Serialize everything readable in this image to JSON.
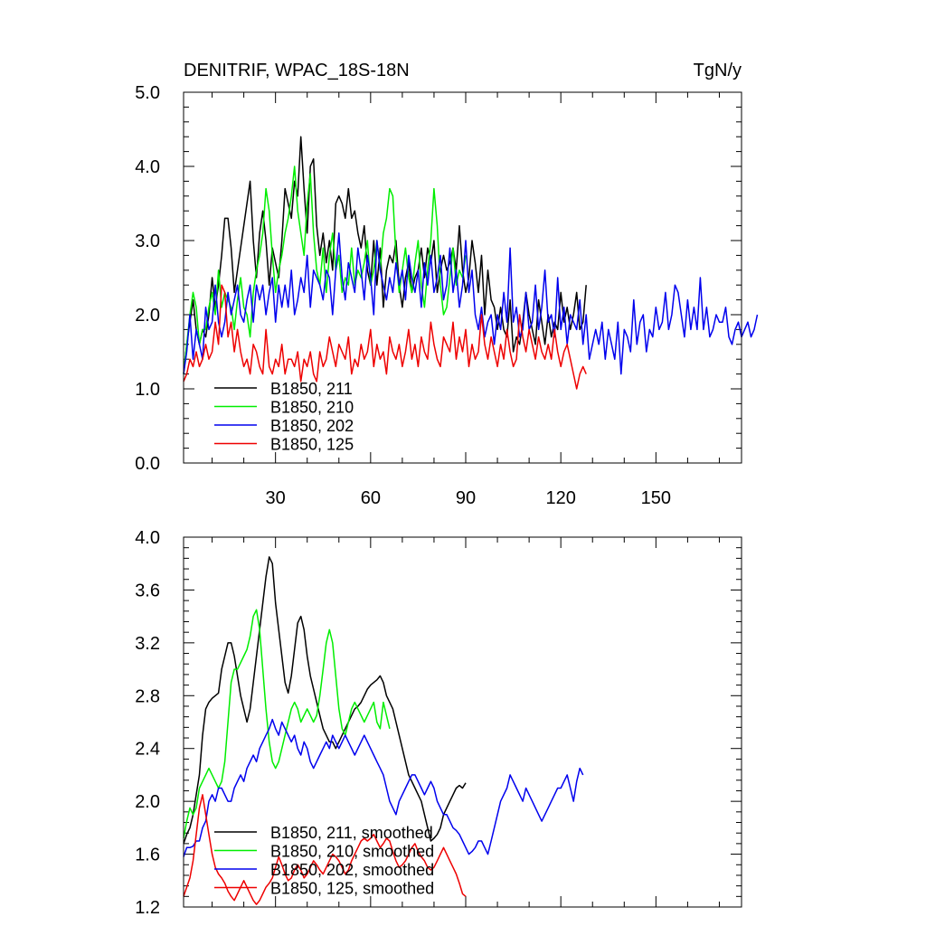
{
  "chart_data": [
    {
      "type": "line",
      "title_left": "DENITRIF, WPAC_18S-18N",
      "title_right": "TgN/y",
      "xlabel": "",
      "ylabel": "",
      "xlim": [
        1,
        177
      ],
      "ylim": [
        0.0,
        5.0
      ],
      "x_ticks": [
        30,
        60,
        90,
        120,
        150
      ],
      "y_ticks": [
        "0.0",
        "1.0",
        "2.0",
        "3.0",
        "4.0",
        "5.0"
      ],
      "legend_position": "bottom-left",
      "series": [
        {
          "name": "B1850, 211",
          "color": "#000000",
          "x_start": 1,
          "values": [
            1.2,
            1.6,
            1.9,
            2.2,
            1.8,
            1.6,
            1.8,
            1.7,
            2.0,
            2.5,
            2.1,
            2.4,
            2.8,
            3.3,
            3.3,
            2.9,
            2.3,
            2.6,
            2.9,
            3.2,
            3.5,
            3.8,
            3.0,
            2.5,
            3.1,
            3.4,
            3.0,
            2.4,
            2.9,
            2.7,
            2.5,
            3.0,
            3.7,
            3.5,
            3.3,
            3.8,
            3.6,
            4.4,
            3.7,
            3.1,
            4.0,
            4.1,
            3.2,
            2.8,
            3.1,
            2.7,
            3.0,
            2.6,
            3.5,
            3.6,
            3.5,
            3.3,
            3.7,
            3.3,
            3.4,
            3.1,
            2.9,
            3.2,
            2.6,
            2.4,
            3.0,
            2.4,
            2.9,
            2.1,
            2.6,
            2.8,
            2.7,
            3.0,
            2.4,
            2.1,
            2.5,
            2.7,
            2.3,
            2.5,
            2.6,
            2.9,
            2.5,
            2.9,
            2.7,
            3.0,
            2.3,
            2.6,
            2.8,
            2.6,
            2.7,
            2.9,
            2.6,
            3.2,
            2.6,
            2.3,
            2.5,
            3.0,
            2.7,
            2.3,
            2.8,
            2.0,
            2.6,
            2.2,
            2.1,
            1.8,
            2.1,
            1.8,
            1.7,
            2.2,
            1.5,
            1.7,
            1.6,
            1.9,
            2.3,
            2.0,
            1.8,
            1.6,
            2.2,
            1.9,
            1.6,
            2.0,
            1.7,
            1.9,
            1.8,
            2.3,
            1.9,
            2.1,
            1.8,
            2.0,
            2.3,
            1.8,
            1.9,
            2.4
          ]
        },
        {
          "name": "B1850, 210",
          "color": "#00ee00",
          "x_start": 1,
          "values": [
            1.2,
            1.6,
            2.0,
            2.3,
            2.1,
            1.6,
            1.8,
            1.8,
            2.1,
            2.3,
            2.0,
            2.6,
            2.1,
            2.3,
            2.2,
            2.1,
            1.8,
            2.2,
            2.5,
            2.1,
            2.0,
            1.7,
            2.3,
            2.6,
            2.8,
            3.1,
            3.7,
            3.4,
            2.8,
            2.3,
            2.6,
            2.8,
            3.1,
            3.3,
            3.6,
            4.0,
            3.4,
            3.1,
            2.8,
            3.5,
            3.9,
            3.1,
            2.6,
            2.4,
            2.9,
            2.3,
            2.8,
            3.1,
            2.6,
            2.8,
            2.3,
            2.5,
            2.4,
            2.9,
            2.4,
            2.6,
            2.5,
            2.7,
            3.0,
            2.4,
            2.6,
            3.0,
            2.6,
            3.1,
            3.3,
            3.7,
            3.6,
            2.8,
            2.3,
            2.6,
            2.9,
            2.5,
            2.3,
            2.7,
            3.0,
            2.4,
            2.1,
            2.6,
            3.0,
            3.7,
            3.2,
            2.4,
            2.0,
            2.1,
            2.5,
            2.9,
            2.4,
            2.6,
            2.5,
            2.8
          ]
        },
        {
          "name": "B1850, 202",
          "color": "#0000ee",
          "x_start": 1,
          "values": [
            1.2,
            1.5,
            2.0,
            1.4,
            1.8,
            1.6,
            1.4,
            2.1,
            1.8,
            1.9,
            2.4,
            1.9,
            1.7,
            1.9,
            2.3,
            2.0,
            2.2,
            2.4,
            2.0,
            1.9,
            2.2,
            2.4,
            1.9,
            2.4,
            2.2,
            2.4,
            2.0,
            2.3,
            2.5,
            1.9,
            2.4,
            2.1,
            2.4,
            2.1,
            2.6,
            2.0,
            2.2,
            2.5,
            2.3,
            2.8,
            2.1,
            2.6,
            2.5,
            2.4,
            2.2,
            2.6,
            2.5,
            2.0,
            2.6,
            3.1,
            2.5,
            2.2,
            2.7,
            2.5,
            2.3,
            2.9,
            2.6,
            2.2,
            2.8,
            2.5,
            2.0,
            3.0,
            2.6,
            2.4,
            2.2,
            2.5,
            2.3,
            2.7,
            2.4,
            2.6,
            2.2,
            2.8,
            2.5,
            2.3,
            2.6,
            2.1,
            2.7,
            2.4,
            2.8,
            2.3,
            2.5,
            2.8,
            2.2,
            2.4,
            2.9,
            2.3,
            2.6,
            2.1,
            2.4,
            3.0,
            2.3,
            2.6,
            2.0,
            1.8,
            2.1,
            1.7,
            1.9,
            2.0,
            1.6,
            2.0,
            1.8,
            2.3,
            1.9,
            2.9,
            1.9,
            2.1,
            1.7,
            1.8,
            2.3,
            1.8,
            1.9,
            2.4,
            1.8,
            2.1,
            2.6,
            1.9,
            2.0,
            1.7,
            2.5,
            1.8,
            2.1,
            1.6,
            2.0,
            1.9,
            1.8,
            2.2,
            1.6,
            2.0,
            1.4,
            1.6,
            1.8,
            1.6,
            1.9,
            1.4,
            1.8,
            1.6,
            1.4,
            1.9,
            1.2,
            1.8,
            1.7,
            1.5,
            2.2,
            1.6,
            1.9,
            2.0,
            1.5,
            1.8,
            1.7,
            2.1,
            1.8,
            1.9,
            2.3,
            1.8,
            2.0,
            2.4,
            2.3,
            2.0,
            1.7,
            2.2,
            1.8,
            2.1,
            1.8,
            2.5,
            1.8,
            2.1,
            1.7,
            1.8,
            2.0,
            1.9,
            1.9,
            2.1,
            1.7,
            1.6,
            1.8,
            1.9,
            1.7,
            1.8,
            1.9,
            1.7,
            1.8,
            2.0
          ]
        },
        {
          "name": "B1850, 125",
          "color": "#ee0000",
          "x_start": 1,
          "values": [
            1.1,
            1.2,
            1.4,
            1.3,
            1.5,
            1.3,
            1.4,
            1.6,
            1.4,
            1.5,
            1.9,
            1.6,
            2.4,
            2.3,
            1.7,
            1.9,
            1.5,
            1.8,
            1.5,
            1.3,
            1.4,
            1.2,
            1.6,
            1.5,
            1.3,
            1.2,
            1.8,
            1.3,
            1.2,
            1.4,
            1.3,
            1.6,
            1.2,
            1.4,
            1.4,
            1.3,
            1.5,
            1.1,
            1.4,
            1.3,
            1.5,
            1.2,
            1.1,
            1.5,
            1.3,
            1.4,
            1.7,
            1.5,
            1.3,
            1.6,
            1.5,
            1.4,
            1.7,
            1.2,
            1.4,
            1.3,
            1.6,
            1.4,
            1.5,
            1.8,
            1.3,
            1.6,
            1.4,
            1.5,
            1.2,
            1.7,
            1.5,
            1.4,
            1.6,
            1.3,
            1.5,
            1.8,
            1.4,
            1.6,
            1.3,
            1.7,
            1.5,
            1.4,
            1.9,
            1.6,
            1.4,
            1.3,
            1.7,
            1.6,
            1.5,
            1.9,
            1.4,
            1.7,
            1.5,
            1.8,
            1.3,
            1.6,
            1.4,
            1.5,
            2.0,
            1.6,
            1.4,
            1.7,
            1.5,
            1.3,
            1.6,
            1.4,
            1.8,
            1.5,
            1.3,
            1.4,
            2.0,
            1.7,
            1.5,
            1.8,
            1.6,
            1.4,
            1.7,
            1.5,
            1.4,
            1.6,
            1.4,
            1.8,
            1.5,
            1.3,
            1.5,
            1.6,
            1.4,
            1.2,
            1.0,
            1.2,
            1.3,
            1.2
          ]
        }
      ]
    },
    {
      "type": "line",
      "xlabel": "",
      "ylabel": "",
      "xlim": [
        1,
        177
      ],
      "ylim": [
        1.2,
        4.0
      ],
      "y_ticks": [
        "1.2",
        "1.6",
        "2.0",
        "2.4",
        "2.8",
        "3.2",
        "3.6",
        "4.0"
      ],
      "legend_position": "bottom-left",
      "series": [
        {
          "name": "B1850, 211, smoothed",
          "color": "#000000",
          "x_start": 1,
          "values": [
            1.68,
            1.75,
            1.8,
            1.9,
            2.05,
            2.2,
            2.5,
            2.7,
            2.75,
            2.78,
            2.8,
            2.82,
            3.0,
            3.1,
            3.2,
            3.2,
            3.1,
            2.95,
            2.8,
            2.7,
            2.6,
            2.7,
            2.9,
            3.1,
            3.3,
            3.5,
            3.7,
            3.85,
            3.8,
            3.5,
            3.3,
            3.1,
            2.9,
            2.82,
            2.95,
            3.15,
            3.35,
            3.4,
            3.3,
            3.1,
            2.95,
            2.85,
            2.75,
            2.65,
            2.55,
            2.5,
            2.45,
            2.45,
            2.4,
            2.45,
            2.5,
            2.55,
            2.6,
            2.65,
            2.7,
            2.72,
            2.75,
            2.8,
            2.85,
            2.88,
            2.9,
            2.92,
            2.95,
            2.9,
            2.8,
            2.75,
            2.7,
            2.6,
            2.5,
            2.4,
            2.3,
            2.2,
            2.15,
            2.1,
            2.05,
            2.0,
            1.9,
            1.8,
            1.7,
            1.72,
            1.75,
            1.8,
            1.9,
            1.95,
            2.0,
            2.05,
            2.1,
            2.12,
            2.1,
            2.14
          ]
        },
        {
          "name": "B1850, 210, smoothed",
          "color": "#00ee00",
          "x_start": 1,
          "values": [
            1.72,
            1.85,
            1.95,
            1.9,
            1.95,
            2.1,
            2.15,
            2.2,
            2.25,
            2.2,
            2.15,
            2.1,
            2.15,
            2.3,
            2.6,
            2.9,
            3.0,
            3.0,
            3.05,
            3.1,
            3.15,
            3.25,
            3.4,
            3.45,
            3.3,
            3.0,
            2.7,
            2.45,
            2.3,
            2.25,
            2.3,
            2.4,
            2.5,
            2.6,
            2.7,
            2.75,
            2.7,
            2.6,
            2.65,
            2.7,
            2.65,
            2.6,
            2.65,
            2.8,
            3.0,
            3.2,
            3.3,
            3.2,
            2.95,
            2.7,
            2.55,
            2.5,
            2.6,
            2.7,
            2.75,
            2.7,
            2.65,
            2.6,
            2.65,
            2.7,
            2.75,
            2.6,
            2.55,
            2.75,
            2.65,
            2.55
          ]
        },
        {
          "name": "B1850, 202, smoothed",
          "color": "#0000ee",
          "x_start": 1,
          "values": [
            1.58,
            1.65,
            1.65,
            1.66,
            1.7,
            1.7,
            1.8,
            1.85,
            2.0,
            2.05,
            2.0,
            2.1,
            2.1,
            2.05,
            2.0,
            2.0,
            2.1,
            2.15,
            2.2,
            2.15,
            2.25,
            2.3,
            2.35,
            2.3,
            2.4,
            2.45,
            2.5,
            2.55,
            2.62,
            2.55,
            2.5,
            2.6,
            2.55,
            2.5,
            2.45,
            2.5,
            2.4,
            2.35,
            2.45,
            2.4,
            2.3,
            2.25,
            2.3,
            2.35,
            2.4,
            2.45,
            2.4,
            2.5,
            2.45,
            2.4,
            2.45,
            2.5,
            2.45,
            2.4,
            2.35,
            2.4,
            2.45,
            2.5,
            2.45,
            2.4,
            2.35,
            2.3,
            2.25,
            2.2,
            2.1,
            2.0,
            1.95,
            1.9,
            2.0,
            2.05,
            2.1,
            2.15,
            2.2,
            2.2,
            2.15,
            2.1,
            2.05,
            2.1,
            2.15,
            2.1,
            2.0,
            1.95,
            1.9,
            1.9,
            1.85,
            1.8,
            1.78,
            1.75,
            1.7,
            1.65,
            1.6,
            1.62,
            1.65,
            1.7,
            1.7,
            1.65,
            1.6,
            1.7,
            1.8,
            1.9,
            2.0,
            2.05,
            2.1,
            2.2,
            2.15,
            2.1,
            2.05,
            2.0,
            2.1,
            2.05,
            2.0,
            1.95,
            1.9,
            1.85,
            1.9,
            1.95,
            2.0,
            2.05,
            2.1,
            2.1,
            2.15,
            2.2,
            2.1,
            2.0,
            2.15,
            2.25,
            2.2
          ]
        },
        {
          "name": "B1850, 125, smoothed",
          "color": "#ee0000",
          "x_start": 1,
          "values": [
            1.28,
            1.35,
            1.42,
            1.55,
            1.75,
            1.95,
            2.05,
            1.9,
            1.75,
            1.6,
            1.5,
            1.45,
            1.42,
            1.38,
            1.32,
            1.28,
            1.25,
            1.3,
            1.35,
            1.4,
            1.35,
            1.3,
            1.25,
            1.22,
            1.25,
            1.3,
            1.35,
            1.38,
            1.42,
            1.5,
            1.58,
            1.52,
            1.45,
            1.4,
            1.42,
            1.48,
            1.52,
            1.48,
            1.42,
            1.45,
            1.5,
            1.55,
            1.52,
            1.48,
            1.45,
            1.5,
            1.55,
            1.6,
            1.58,
            1.55,
            1.5,
            1.45,
            1.48,
            1.55,
            1.6,
            1.65,
            1.7,
            1.72,
            1.7,
            1.72,
            1.75,
            1.7,
            1.65,
            1.68,
            1.72,
            1.7,
            1.62,
            1.55,
            1.5,
            1.52,
            1.55,
            1.6,
            1.65,
            1.68,
            1.62,
            1.58,
            1.55,
            1.5,
            1.48,
            1.5,
            1.55,
            1.6,
            1.65,
            1.6,
            1.55,
            1.5,
            1.45,
            1.38,
            1.3,
            1.28
          ]
        }
      ]
    }
  ]
}
